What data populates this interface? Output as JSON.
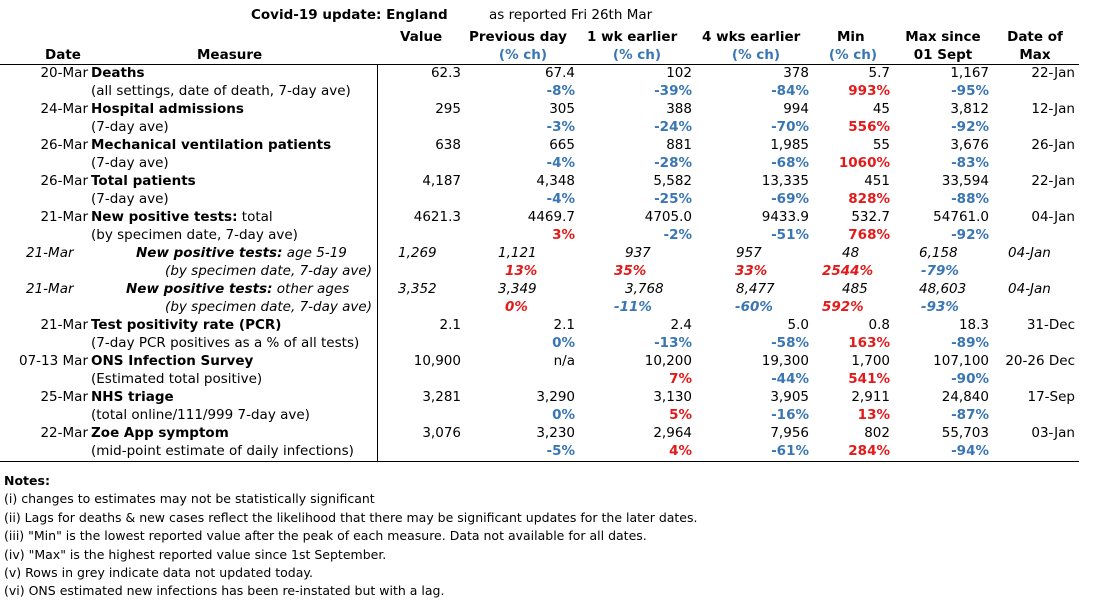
{
  "title": "Covid-19 update: England",
  "reported": "as reported  Fri 26th Mar",
  "headers": {
    "date": "Date",
    "measure": "Measure",
    "value": "Value",
    "prev_day": "Previous day",
    "wk1": "1 wk earlier",
    "wk4": "4 wks earlier",
    "min": "Min",
    "max_since_1": "Max since",
    "max_since_2": "01 Sept",
    "date_of_1": "Date of",
    "date_of_2": "Max",
    "pct_ch": "(% ch)"
  },
  "rows": [
    {
      "date": "20-Mar",
      "name": "Deaths",
      "sub": "(all settings, date of death, 7-day ave)",
      "value": "62.3",
      "prev": "67.4",
      "wk1": "102",
      "wk4": "378",
      "min": "5.7",
      "max": "1,167",
      "max_date": "22-Jan",
      "prev_pct": "-8%",
      "wk1_pct": "-39%",
      "wk4_pct": "-84%",
      "min_pct": "993%",
      "max_pct": "-95%"
    },
    {
      "date": "24-Mar",
      "name": "Hospital admissions",
      "sub": "(7-day ave)",
      "value": "295",
      "prev": "305",
      "wk1": "388",
      "wk4": "994",
      "min": "45",
      "max": "3,812",
      "max_date": "12-Jan",
      "prev_pct": "-3%",
      "wk1_pct": "-24%",
      "wk4_pct": "-70%",
      "min_pct": "556%",
      "max_pct": "-92%"
    },
    {
      "date": "26-Mar",
      "name": "Mechanical ventilation patients",
      "sub": "(7-day ave)",
      "value": "638",
      "prev": "665",
      "wk1": "881",
      "wk4": "1,985",
      "min": "55",
      "max": "3,676",
      "max_date": "26-Jan",
      "prev_pct": "-4%",
      "wk1_pct": "-28%",
      "wk4_pct": "-68%",
      "min_pct": "1060%",
      "max_pct": "-83%"
    },
    {
      "date": "26-Mar",
      "name": "Total patients",
      "sub": "(7-day ave)",
      "value": "4,187",
      "prev": "4,348",
      "wk1": "5,582",
      "wk4": "13,335",
      "min": "451",
      "max": "33,594",
      "max_date": "22-Jan",
      "prev_pct": "-4%",
      "wk1_pct": "-25%",
      "wk4_pct": "-69%",
      "min_pct": "828%",
      "max_pct": "-88%"
    },
    {
      "date": "21-Mar",
      "name": "New positive tests:",
      "name_suffix": " total",
      "sub": "(by specimen date, 7-day ave)",
      "value": "4621.3",
      "prev": "4469.7",
      "wk1": "4705.0",
      "wk4": "9433.9",
      "min": "532.7",
      "max": "54761.0",
      "max_date": "04-Jan",
      "prev_pct": "3%",
      "wk1_pct": "-2%",
      "wk4_pct": "-51%",
      "min_pct": "768%",
      "max_pct": "-92%"
    },
    {
      "date": "21-Mar",
      "name": "New positive tests:",
      "name_suffix": " age 5-19",
      "sub": "(by specimen date, 7-day ave)",
      "value": "1,269",
      "prev": "1,121",
      "wk1": "937",
      "wk4": "957",
      "min": "48",
      "max": "6,158",
      "max_date": "04-Jan",
      "prev_pct": "13%",
      "wk1_pct": "35%",
      "wk4_pct": "33%",
      "min_pct": "2544%",
      "max_pct": "-79%"
    },
    {
      "date": "21-Mar",
      "name": "New positive tests:",
      "name_suffix": " other ages",
      "sub": "(by specimen date, 7-day ave)",
      "value": "3,352",
      "prev": "3,349",
      "wk1": "3,768",
      "wk4": "8,477",
      "min": "485",
      "max": "48,603",
      "max_date": "04-Jan",
      "prev_pct": "0%",
      "wk1_pct": "-11%",
      "wk4_pct": "-60%",
      "min_pct": "592%",
      "max_pct": "-93%"
    },
    {
      "date": "21-Mar",
      "name": "Test positivity rate (PCR)",
      "sub": "(7-day PCR positives as a % of all tests)",
      "value": "2.1",
      "prev": "2.1",
      "wk1": "2.4",
      "wk4": "5.0",
      "min": "0.8",
      "max": "18.3",
      "max_date": "31-Dec",
      "prev_pct": "0%",
      "wk1_pct": "-13%",
      "wk4_pct": "-58%",
      "min_pct": "163%",
      "max_pct": "-89%"
    },
    {
      "date": "07-13 Mar",
      "name": "ONS Infection Survey",
      "sub": "(Estimated total positive)",
      "value": "10,900",
      "prev": "n/a",
      "wk1": "10,200",
      "wk4": "19,300",
      "min": "1,700",
      "max": "107,100",
      "max_date": "20-26 Dec",
      "prev_pct": "",
      "wk1_pct": "7%",
      "wk4_pct": "-44%",
      "min_pct": "541%",
      "max_pct": "-90%"
    },
    {
      "date": "25-Mar",
      "name": "NHS triage",
      "sub": "(total online/111/999 7-day ave)",
      "value": "3,281",
      "prev": "3,290",
      "wk1": "3,130",
      "wk4": "3,905",
      "min": "2,911",
      "max": "24,840",
      "max_date": "17-Sep",
      "prev_pct": "0%",
      "wk1_pct": "5%",
      "wk4_pct": "-16%",
      "min_pct": "13%",
      "max_pct": "-87%"
    },
    {
      "date": "22-Mar",
      "name": "Zoe App symptom",
      "sub": "(mid-point estimate of daily infections)",
      "value": "3,076",
      "prev": "3,230",
      "wk1": "2,964",
      "wk4": "7,956",
      "min": "802",
      "max": "55,703",
      "max_date": "03-Jan",
      "prev_pct": "-5%",
      "wk1_pct": "4%",
      "wk4_pct": "-61%",
      "min_pct": "284%",
      "max_pct": "-94%"
    }
  ],
  "notes_title": "Notes:",
  "notes": [
    "(i) changes to estimates may not be statistically significant",
    "(ii) Lags for deaths & new cases reflect the likelihood that there may be significant updates for the later dates.",
    "(iii) \"Min\" is the lowest reported value after the peak of each measure. Data not available for all dates.",
    "(iv) \"Max\" is the highest reported value since 1st September.",
    "(v) Rows in grey indicate data not updated today.",
    "(vi) ONS estimated new infections has been re-instated but with a lag."
  ],
  "colors": {
    "negative": "#3a76b4",
    "positive": "#e41a1a"
  }
}
